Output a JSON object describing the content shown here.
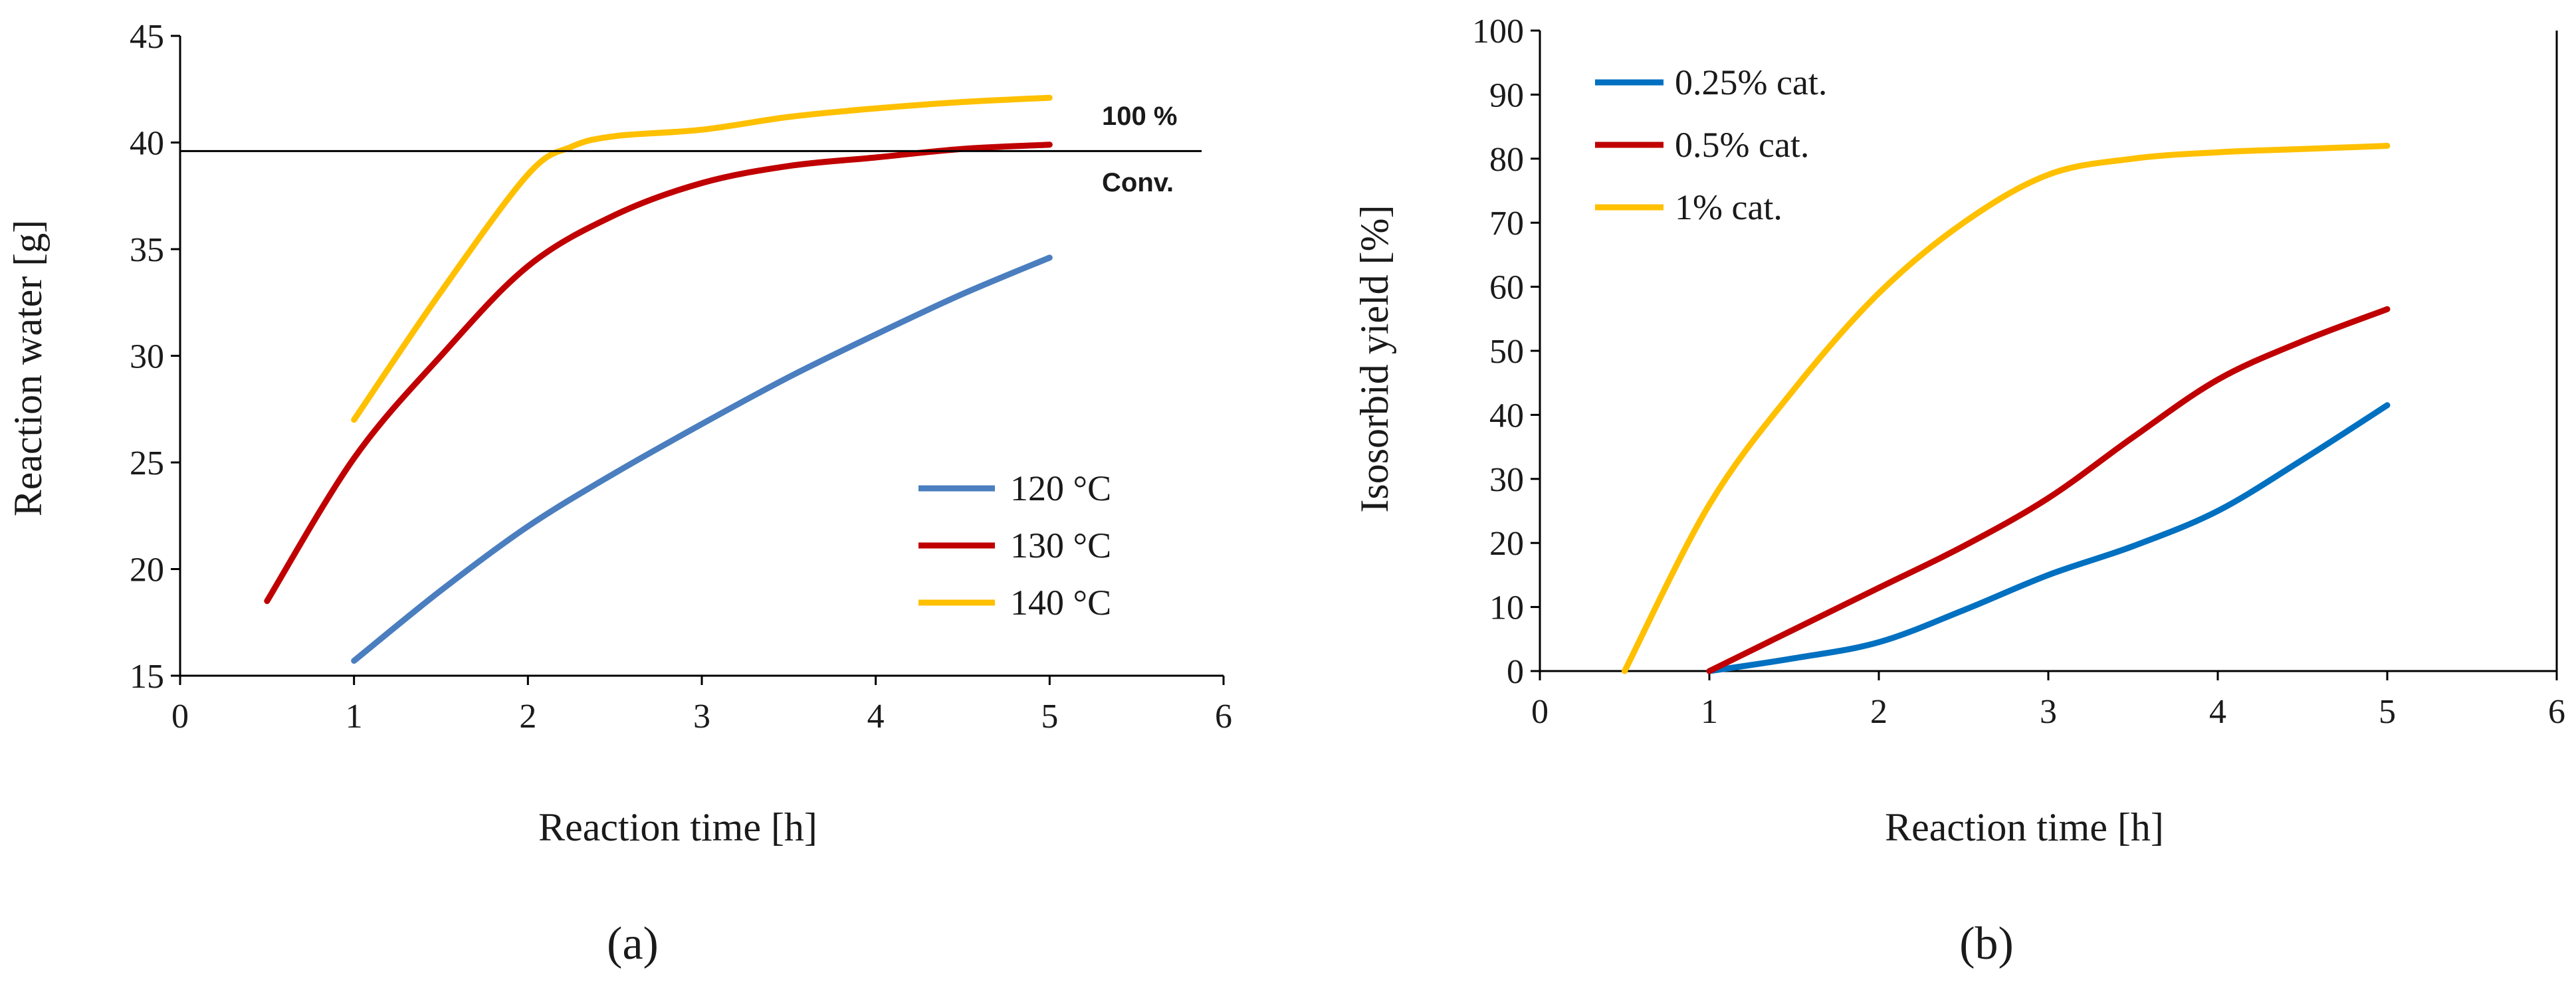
{
  "chart_data": [
    {
      "type": "line",
      "panel_label": "(a)",
      "title": "",
      "xlabel": "Reaction time [h]",
      "ylabel": "Reaction water [g]",
      "xlim": [
        0,
        6
      ],
      "ylim": [
        15,
        45
      ],
      "x_ticks": [
        "0",
        "1",
        "2",
        "3",
        "4",
        "5",
        "6"
      ],
      "y_ticks": [
        "15",
        "20",
        "25",
        "30",
        "35",
        "40",
        "45"
      ],
      "grid": false,
      "legend_position": "lower-right",
      "reference_line": {
        "y": 39.6,
        "label_top": "100 %",
        "label_bottom": "Conv."
      },
      "series": [
        {
          "name": "120 °C",
          "color": "#4a7ebf",
          "x": [
            1,
            1.5,
            2,
            2.5,
            3,
            3.5,
            4,
            4.5,
            5
          ],
          "y": [
            15.7,
            19.0,
            22.0,
            24.5,
            26.8,
            29.0,
            31.0,
            32.9,
            34.6
          ]
        },
        {
          "name": "130 °C",
          "color": "#c00000",
          "x": [
            0.5,
            1,
            1.5,
            2,
            2.5,
            3,
            3.5,
            4,
            4.5,
            5
          ],
          "y": [
            18.5,
            25.2,
            30.0,
            34.2,
            36.6,
            38.1,
            38.9,
            39.3,
            39.7,
            39.9
          ]
        },
        {
          "name": "140 °C",
          "color": "#ffc000",
          "x": [
            1,
            1.5,
            2,
            2.25,
            2.5,
            3,
            3.5,
            4,
            4.5,
            5
          ],
          "y": [
            27.0,
            33.0,
            38.5,
            39.8,
            40.3,
            40.6,
            41.2,
            41.6,
            41.9,
            42.1
          ]
        }
      ]
    },
    {
      "type": "line",
      "panel_label": "(b)",
      "title": "",
      "xlabel": "Reaction time [h]",
      "ylabel": "Isosorbid yield [%]",
      "xlim": [
        0,
        6
      ],
      "ylim": [
        0,
        100
      ],
      "x_ticks": [
        "0",
        "1",
        "2",
        "3",
        "4",
        "5",
        "6"
      ],
      "y_ticks": [
        "0",
        "10",
        "20",
        "30",
        "40",
        "50",
        "60",
        "70",
        "80",
        "90",
        "100"
      ],
      "grid": false,
      "legend_position": "top-left",
      "series": [
        {
          "name": "0.25% cat.",
          "color": "#0070c0",
          "x": [
            1,
            1.5,
            2,
            2.5,
            3,
            3.5,
            4,
            4.5,
            5
          ],
          "y": [
            0,
            2,
            4.5,
            9.5,
            15,
            19.5,
            25,
            33,
            41.5
          ]
        },
        {
          "name": "0.5% cat.",
          "color": "#c00000",
          "x": [
            1,
            1.5,
            2,
            2.5,
            3,
            3.5,
            4,
            4.5,
            5
          ],
          "y": [
            0,
            6.5,
            13,
            19.5,
            27,
            36.5,
            45.5,
            51.5,
            56.5
          ]
        },
        {
          "name": "1% cat.",
          "color": "#ffc000",
          "x": [
            0.5,
            1,
            1.5,
            2,
            2.5,
            3,
            3.5,
            4,
            4.5,
            5
          ],
          "y": [
            0,
            26,
            44,
            59,
            70,
            77.5,
            80,
            81,
            81.5,
            82
          ]
        }
      ]
    }
  ]
}
